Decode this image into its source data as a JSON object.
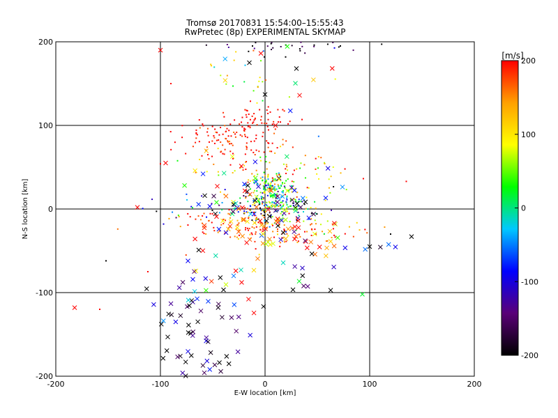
{
  "chart_data": {
    "type": "scatter",
    "title": "Tromsø 20170831 15:54:00–15:55:43",
    "subtitle": "RwPretec (8p) EXPERIMENTAL SKYMAP",
    "xlabel": "E-W location [km]",
    "ylabel": "N-S location [km]",
    "xlim": [
      -200,
      200
    ],
    "ylim": [
      -200,
      200
    ],
    "xticks": [
      "-200",
      "-100",
      "0",
      "100",
      "200"
    ],
    "yticks": [
      "-200",
      "-100",
      "0",
      "100",
      "200"
    ],
    "grid": true,
    "colorbar": {
      "label": "[m/s]",
      "range": [
        -200,
        200
      ],
      "ticks": [
        "-200",
        "-100",
        "0",
        "100",
        "200"
      ],
      "colormap": [
        "#000000",
        "#5a0078",
        "#0000ff",
        "#00c8ff",
        "#00ff00",
        "#ffff00",
        "#ffa000",
        "#ff0000"
      ]
    },
    "markers": {
      "small": "dot",
      "large": "cross"
    },
    "clusters": [
      {
        "cx": -5,
        "cy": 110,
        "rx": 18,
        "ry": 7,
        "n": 40,
        "v": 200,
        "vs": 15,
        "m": "dot"
      },
      {
        "cx": -35,
        "cy": 85,
        "rx": 25,
        "ry": 12,
        "n": 110,
        "v": 195,
        "vs": 20,
        "m": "dot"
      },
      {
        "cx": -5,
        "cy": 55,
        "rx": 35,
        "ry": 15,
        "n": 60,
        "v": 150,
        "vs": 60,
        "m": "dot"
      },
      {
        "cx": -20,
        "cy": 160,
        "rx": 35,
        "ry": 20,
        "n": 25,
        "v": 80,
        "vs": 80,
        "m": "dot"
      },
      {
        "cx": 20,
        "cy": 195,
        "rx": 45,
        "ry": 5,
        "n": 35,
        "v": -180,
        "vs": 30,
        "m": "dot"
      },
      {
        "cx": 5,
        "cy": 20,
        "rx": 10,
        "ry": 12,
        "n": 160,
        "v": 20,
        "vs": 60,
        "m": "dot"
      },
      {
        "cx": 5,
        "cy": 5,
        "rx": 25,
        "ry": 10,
        "n": 110,
        "v": -40,
        "vs": 120,
        "m": "dot"
      },
      {
        "cx": 25,
        "cy": 35,
        "rx": 30,
        "ry": 15,
        "n": 50,
        "v": 90,
        "vs": 90,
        "m": "dot"
      },
      {
        "cx": -30,
        "cy": -15,
        "rx": 30,
        "ry": 10,
        "n": 70,
        "v": 180,
        "vs": 30,
        "m": "dot"
      },
      {
        "cx": 20,
        "cy": -30,
        "rx": 40,
        "ry": 10,
        "n": 70,
        "v": 175,
        "vs": 40,
        "m": "dot"
      },
      {
        "cx": 40,
        "cy": -15,
        "rx": 25,
        "ry": 10,
        "n": 25,
        "v": 80,
        "vs": 50,
        "m": "dot"
      },
      {
        "cx": -60,
        "cy": 5,
        "rx": 40,
        "ry": 12,
        "n": 25,
        "v": -100,
        "vs": 100,
        "m": "dot"
      },
      {
        "cx": 5,
        "cy": 5,
        "rx": 30,
        "ry": 18,
        "n": 60,
        "v": -60,
        "vs": 150,
        "m": "cross"
      },
      {
        "cx": -25,
        "cy": -20,
        "rx": 30,
        "ry": 18,
        "n": 30,
        "v": 170,
        "vs": 40,
        "m": "cross"
      },
      {
        "cx": 15,
        "cy": -30,
        "rx": 35,
        "ry": 15,
        "n": 30,
        "v": 150,
        "vs": 80,
        "m": "cross"
      },
      {
        "cx": -30,
        "cy": 40,
        "rx": 25,
        "ry": 25,
        "n": 15,
        "v": 100,
        "vs": 120,
        "m": "cross"
      },
      {
        "cx": -60,
        "cy": -140,
        "rx": 20,
        "ry": 35,
        "n": 60,
        "v": -180,
        "vs": 50,
        "m": "cross"
      },
      {
        "cx": -70,
        "cy": -90,
        "rx": 15,
        "ry": 20,
        "n": 14,
        "v": -60,
        "vs": 120,
        "m": "cross"
      },
      {
        "cx": -25,
        "cy": -75,
        "rx": 20,
        "ry": 25,
        "n": 12,
        "v": 80,
        "vs": 120,
        "m": "cross"
      },
      {
        "cx": 40,
        "cy": -80,
        "rx": 15,
        "ry": 15,
        "n": 10,
        "v": -150,
        "vs": 80,
        "m": "cross"
      },
      {
        "cx": 80,
        "cy": -40,
        "rx": 50,
        "ry": 8,
        "n": 8,
        "v": -100,
        "vs": 150,
        "m": "cross"
      },
      {
        "cx": 20,
        "cy": 150,
        "rx": 30,
        "ry": 30,
        "n": 8,
        "v": 100,
        "vs": 120,
        "m": "cross"
      }
    ],
    "points": [
      {
        "x": -100,
        "y": 190,
        "v": 200,
        "m": "cross"
      },
      {
        "x": -182,
        "y": -118,
        "v": 200,
        "m": "cross"
      },
      {
        "x": 0,
        "y": 137,
        "v": -200,
        "m": "cross"
      },
      {
        "x": -122,
        "y": 2,
        "v": 200,
        "m": "cross"
      },
      {
        "x": 140,
        "y": -33,
        "v": -200,
        "m": "cross"
      },
      {
        "x": 100,
        "y": -45,
        "v": -200,
        "m": "cross"
      },
      {
        "x": 93,
        "y": -102,
        "v": 20,
        "m": "cross"
      },
      {
        "x": -95,
        "y": 55,
        "v": 200,
        "m": "cross"
      },
      {
        "x": 33,
        "y": 136,
        "v": 200,
        "m": "cross"
      },
      {
        "x": 10,
        "y": 100,
        "v": 200,
        "m": "cross"
      },
      {
        "x": -15,
        "y": 175,
        "v": -200,
        "m": "cross"
      },
      {
        "x": 30,
        "y": 168,
        "v": -200,
        "m": "cross"
      },
      {
        "x": -152,
        "y": -62,
        "v": -200,
        "m": "dot"
      },
      {
        "x": -158,
        "y": -120,
        "v": 200,
        "m": "dot"
      },
      {
        "x": -112,
        "y": -75,
        "v": 200,
        "m": "dot"
      },
      {
        "x": -100,
        "y": 54,
        "v": 200,
        "m": "dot"
      },
      {
        "x": 135,
        "y": 33,
        "v": 200,
        "m": "dot"
      },
      {
        "x": 120,
        "y": -30,
        "v": -200,
        "m": "dot"
      },
      {
        "x": -12,
        "y": 195,
        "v": -200,
        "m": "dot"
      },
      {
        "x": 72,
        "y": 195,
        "v": -200,
        "m": "dot"
      },
      {
        "x": -97,
        "y": -18,
        "v": -100,
        "m": "dot"
      },
      {
        "x": -90,
        "y": 150,
        "v": 200,
        "m": "dot"
      }
    ]
  }
}
